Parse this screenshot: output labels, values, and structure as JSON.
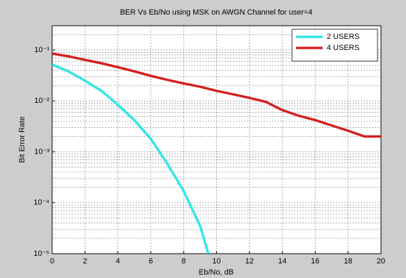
{
  "chart_data": {
    "type": "line",
    "title": "BER Vs Eb/No using MSK on AWGN  Channel for user=4",
    "x_label": "Eb/No, dB",
    "y_label": "Bit Error Rate",
    "log_y": true,
    "grid": true,
    "legend": "upper right",
    "xlim": [
      0,
      20
    ],
    "xticks": [
      0,
      2,
      4,
      6,
      8,
      10,
      12,
      14,
      16,
      18,
      20
    ],
    "ylim": [
      1e-05,
      0.3
    ],
    "yticks": [
      {
        "value": 1e-05,
        "label": "10⁻⁵"
      },
      {
        "value": 0.0001,
        "label": "10⁻⁴"
      },
      {
        "value": 0.001,
        "label": "10⁻³"
      },
      {
        "value": 0.01,
        "label": "10⁻²"
      },
      {
        "value": 0.1,
        "label": "10⁻¹"
      }
    ],
    "series": [
      {
        "name": "2 USERS",
        "color": "#33e6e6",
        "x": [
          0,
          1,
          2,
          3,
          4,
          5,
          6,
          7,
          8,
          9,
          9.5
        ],
        "values": [
          0.052,
          0.038,
          0.025,
          0.0158,
          0.0084,
          0.0042,
          0.0018,
          0.00059,
          0.00017,
          3.5e-05,
          1e-05
        ]
      },
      {
        "name": "4 USERS",
        "color": "#d42020",
        "x": [
          0,
          1,
          2,
          3,
          4,
          5,
          6,
          7,
          8,
          9,
          10,
          11,
          12,
          13,
          14,
          15,
          16,
          17,
          18,
          19,
          20
        ],
        "values": [
          0.085,
          0.075,
          0.064,
          0.055,
          0.046,
          0.038,
          0.031,
          0.026,
          0.022,
          0.019,
          0.0158,
          0.0135,
          0.0115,
          0.0096,
          0.0066,
          0.0051,
          0.0042,
          0.0033,
          0.0026,
          0.002,
          0.002
        ]
      }
    ]
  }
}
